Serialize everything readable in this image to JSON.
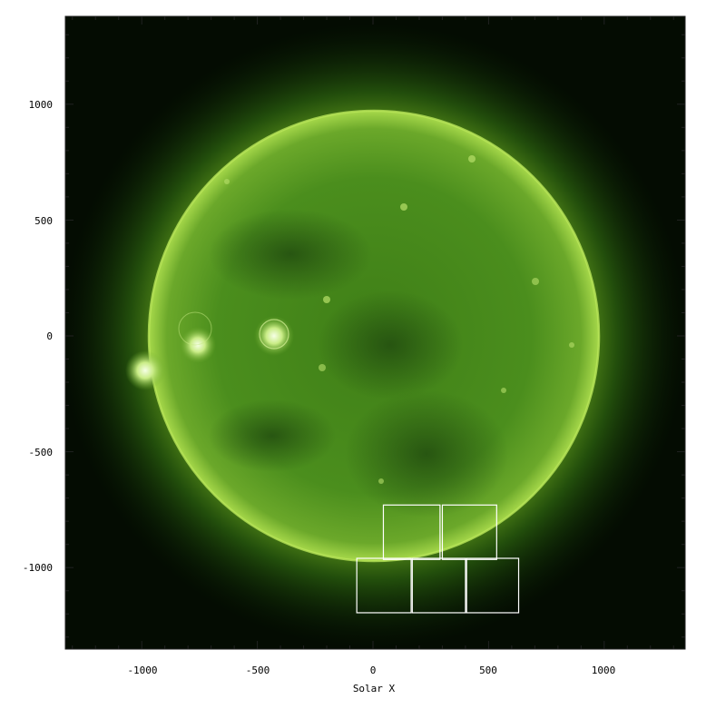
{
  "image": {
    "subject": "solar disk",
    "colormap_color": "#6fae1a",
    "background_color": "#ffffff",
    "overlay_box_color": "#ffffff"
  },
  "axes": {
    "xlabel": "Solar X",
    "ylabel": "",
    "xlim": [
      -1340,
      1380
    ],
    "ylim": [
      -1355,
      1390
    ],
    "x_ticks": [
      "-1000",
      "-500",
      "0",
      "500",
      "1000"
    ],
    "y_ticks": [
      "1000",
      "500",
      "0",
      "-500",
      "-1000"
    ],
    "x_tick_values": [
      -1000,
      -500,
      0,
      500,
      1000
    ],
    "y_tick_values": [
      1000,
      500,
      0,
      -500,
      -1000
    ]
  },
  "overlay_boxes": [
    {
      "x0": 45,
      "x1": 290,
      "y0": -965,
      "y1": -730
    },
    {
      "x0": 300,
      "x1": 535,
      "y0": -965,
      "y1": -730
    },
    {
      "x0": -70,
      "x1": 165,
      "y0": -1195,
      "y1": -960
    },
    {
      "x0": 170,
      "x1": 400,
      "y0": -1195,
      "y1": -960
    },
    {
      "x0": 405,
      "x1": 630,
      "y0": -1195,
      "y1": -960
    }
  ]
}
